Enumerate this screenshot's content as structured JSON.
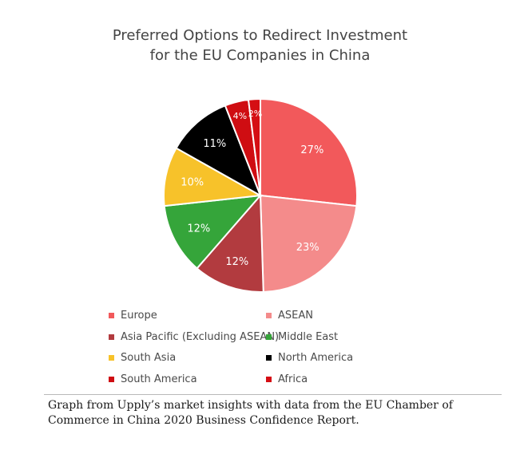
{
  "chart_data": {
    "type": "pie",
    "title": [
      "Preferred Options to Redirect Investment",
      "for the EU Companies in China"
    ],
    "slices": [
      {
        "label": "Europe",
        "value": 27,
        "display": "27%",
        "color": "#f2595b"
      },
      {
        "label": "ASEAN",
        "value": 23,
        "display": "23%",
        "color": "#f48b8b"
      },
      {
        "label": "Asia Pacific (Excluding ASEAN)",
        "value": 12,
        "display": "12%",
        "color": "#b23b3f"
      },
      {
        "label": "Middle East",
        "value": 12,
        "display": "12%",
        "color": "#35a53a"
      },
      {
        "label": "South Asia",
        "value": 10,
        "display": "10%",
        "color": "#f7c22a"
      },
      {
        "label": "North America",
        "value": 11,
        "display": "11%",
        "color": "#000000"
      },
      {
        "label": "South America",
        "value": 4,
        "display": "4%",
        "color": "#cf0d12"
      },
      {
        "label": "Africa",
        "value": 2,
        "display": "2%",
        "color": "#d50e14"
      }
    ],
    "legend_placement": "bottom"
  },
  "caption": "Graph from Upply’s market insights with data from the EU Chamber of Commerce in China 2020 Business Confidence Report."
}
